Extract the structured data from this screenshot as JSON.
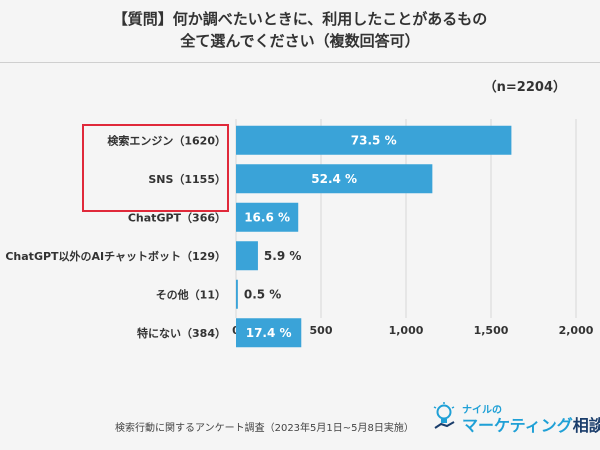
{
  "header": {
    "title_line1": "【質問】何か調べたいときに、利用したことがあるもの",
    "title_line2": "全て選んでください（複数回答可）",
    "sample": "（n=2204）"
  },
  "chart_data": {
    "type": "bar",
    "orientation": "horizontal",
    "categories": [
      "検索エンジン（1620）",
      "SNS（1155）",
      "ChatGPT（366）",
      "ChatGPT以外のAIチャットボット（129）",
      "その他（11）",
      "特にない（384）"
    ],
    "values": [
      1620,
      1155,
      366,
      129,
      11,
      384
    ],
    "data_labels": [
      "73.5 %",
      "52.4 %",
      "16.6 %",
      "5.9 %",
      "0.5 %",
      "17.4 %"
    ],
    "xlim": [
      0,
      2000
    ],
    "xticks": [
      "0",
      "500",
      "1,000",
      "1,500",
      "2,000"
    ],
    "xtick_values": [
      0,
      500,
      1000,
      1500,
      2000
    ],
    "grid": true,
    "bar_color": "#3aa3d8",
    "highlight_color": "#e0293a"
  },
  "footer": {
    "note": "検索行動に関するアンケート調査（2023年5月1日~5月8日実施）",
    "logo_top": "ナイルの",
    "logo_main": "マーケティング",
    "logo_accent": "相談室"
  }
}
